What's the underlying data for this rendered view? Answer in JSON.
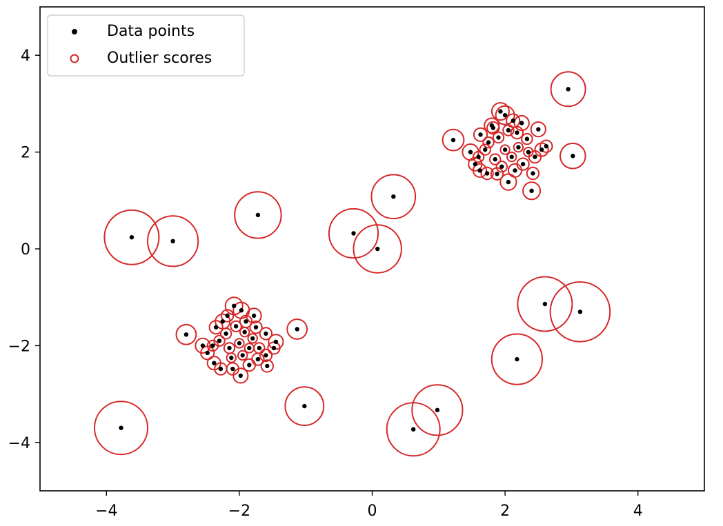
{
  "chart_data": {
    "type": "scatter",
    "title": "",
    "xlabel": "",
    "ylabel": "",
    "xlim": [
      -5,
      5
    ],
    "ylim": [
      -5,
      5
    ],
    "xticks": [
      -4,
      -2,
      0,
      2,
      4
    ],
    "yticks": [
      4,
      2,
      0,
      -2,
      -4
    ],
    "xtick_labels": [
      "−4",
      "−2",
      "0",
      "2",
      "4"
    ],
    "ytick_labels": [
      "4",
      "2",
      "0",
      "−2",
      "−4"
    ],
    "grid": false,
    "legend_position": "top-left",
    "legend": [
      {
        "label": "Data points",
        "marker": "filled-dot",
        "color": "#000000"
      },
      {
        "label": "Outlier scores",
        "marker": "open-circle",
        "color": "#d62728"
      }
    ],
    "outlier_score_scale": "circle radius proportional to outlier score",
    "series": [
      {
        "name": "Data points",
        "color": "#000000",
        "points": [
          [
            -3.62,
            0.24,
            0.41
          ],
          [
            -3.0,
            0.16,
            0.38
          ],
          [
            -1.72,
            0.7,
            0.35
          ],
          [
            -0.28,
            0.32,
            0.37
          ],
          [
            0.08,
            0.0,
            0.36
          ],
          [
            0.32,
            1.08,
            0.33
          ],
          [
            -3.78,
            -3.7,
            0.4
          ],
          [
            -1.02,
            -3.25,
            0.29
          ],
          [
            0.62,
            -3.73,
            0.4
          ],
          [
            0.98,
            -3.33,
            0.38
          ],
          [
            2.18,
            -2.28,
            0.38
          ],
          [
            2.6,
            -1.14,
            0.41
          ],
          [
            3.13,
            -1.3,
            0.45
          ],
          [
            2.95,
            3.3,
            0.26
          ],
          [
            3.02,
            1.92,
            0.19
          ],
          [
            1.22,
            2.25,
            0.16
          ],
          [
            2.4,
            1.2,
            0.13
          ],
          [
            2.5,
            2.47,
            0.11
          ],
          [
            2.0,
            2.76,
            0.14
          ],
          [
            1.93,
            2.84,
            0.13
          ],
          [
            2.25,
            2.6,
            0.11
          ],
          [
            1.8,
            2.55,
            0.11
          ],
          [
            1.63,
            2.36,
            0.1
          ],
          [
            1.48,
            2.0,
            0.12
          ],
          [
            1.55,
            1.75,
            0.1
          ],
          [
            1.62,
            1.62,
            0.1
          ],
          [
            1.73,
            1.56,
            0.09
          ],
          [
            1.88,
            1.55,
            0.09
          ],
          [
            2.05,
            1.38,
            0.12
          ],
          [
            2.15,
            1.62,
            0.1
          ],
          [
            2.27,
            1.75,
            0.09
          ],
          [
            2.42,
            1.56,
            0.09
          ],
          [
            2.45,
            1.9,
            0.09
          ],
          [
            2.55,
            2.05,
            0.1
          ],
          [
            2.62,
            2.12,
            0.09
          ],
          [
            2.33,
            2.27,
            0.08
          ],
          [
            2.18,
            2.4,
            0.09
          ],
          [
            2.05,
            2.45,
            0.08
          ],
          [
            1.9,
            2.3,
            0.08
          ],
          [
            1.75,
            2.2,
            0.08
          ],
          [
            1.7,
            2.05,
            0.08
          ],
          [
            1.85,
            1.85,
            0.08
          ],
          [
            2.0,
            2.05,
            0.07
          ],
          [
            2.1,
            1.9,
            0.07
          ],
          [
            2.2,
            2.1,
            0.07
          ],
          [
            1.95,
            1.7,
            0.08
          ],
          [
            2.35,
            2.0,
            0.07
          ],
          [
            1.6,
            1.9,
            0.08
          ],
          [
            1.82,
            2.5,
            0.09
          ],
          [
            2.12,
            2.65,
            0.1
          ],
          [
            -2.8,
            -1.77,
            0.15
          ],
          [
            -1.13,
            -1.66,
            0.15
          ],
          [
            -2.08,
            -1.18,
            0.13
          ],
          [
            -1.97,
            -1.27,
            0.12
          ],
          [
            -1.78,
            -1.38,
            0.11
          ],
          [
            -2.25,
            -1.5,
            0.11
          ],
          [
            -2.35,
            -1.62,
            0.1
          ],
          [
            -2.55,
            -2.0,
            0.11
          ],
          [
            -2.48,
            -2.15,
            0.1
          ],
          [
            -2.38,
            -2.36,
            0.1
          ],
          [
            -2.28,
            -2.48,
            0.09
          ],
          [
            -2.1,
            -2.48,
            0.09
          ],
          [
            -1.98,
            -2.62,
            0.11
          ],
          [
            -1.85,
            -2.4,
            0.09
          ],
          [
            -1.72,
            -2.28,
            0.09
          ],
          [
            -1.58,
            -2.42,
            0.09
          ],
          [
            -1.6,
            -2.2,
            0.09
          ],
          [
            -1.45,
            -1.92,
            0.11
          ],
          [
            -1.6,
            -1.75,
            0.09
          ],
          [
            -1.75,
            -1.62,
            0.09
          ],
          [
            -1.9,
            -1.5,
            0.09
          ],
          [
            -2.05,
            -1.6,
            0.08
          ],
          [
            -2.2,
            -1.75,
            0.08
          ],
          [
            -2.3,
            -1.9,
            0.08
          ],
          [
            -2.15,
            -2.05,
            0.08
          ],
          [
            -2.0,
            -1.95,
            0.07
          ],
          [
            -1.85,
            -2.05,
            0.07
          ],
          [
            -1.95,
            -2.2,
            0.07
          ],
          [
            -2.12,
            -2.25,
            0.07
          ],
          [
            -1.8,
            -1.85,
            0.07
          ],
          [
            -2.4,
            -2.0,
            0.08
          ],
          [
            -1.7,
            -2.05,
            0.08
          ],
          [
            -1.48,
            -2.05,
            0.09
          ],
          [
            -2.18,
            -1.38,
            0.09
          ],
          [
            -1.92,
            -1.72,
            0.07
          ]
        ]
      }
    ],
    "point_format": [
      "x",
      "y",
      "outlier_score"
    ]
  }
}
